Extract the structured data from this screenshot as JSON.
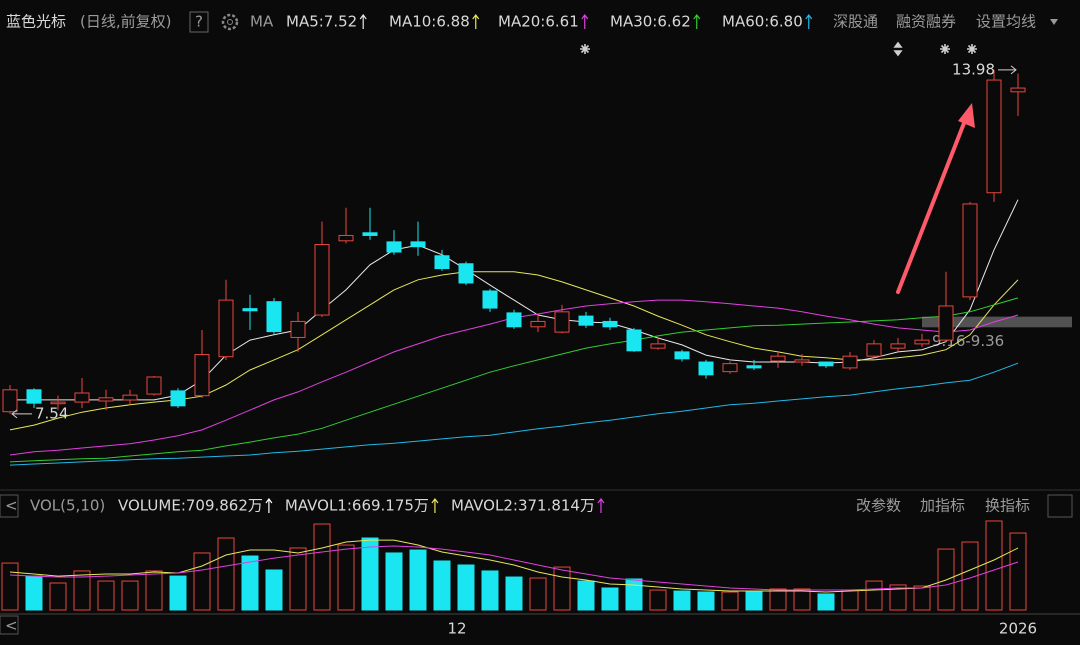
{
  "header": {
    "title": "蓝色光标",
    "subtitle": "(日线,前复权)",
    "indicator": "MA",
    "tools": [
      "深股通",
      "融资融券",
      "设置均线"
    ]
  },
  "toolbar": [
    "改参数",
    "加指标",
    "换指标"
  ],
  "chart_data": [
    {
      "type": "candlestick",
      "up_color": "#e8463f",
      "down_color": "#19e6f0",
      "ylim": [
        6.17,
        14.54
      ],
      "open": [
        7.58,
        7.99,
        7.73,
        7.76,
        7.78,
        7.8,
        7.91,
        7.97,
        7.88,
        8.61,
        9.51,
        9.64,
        8.97,
        9.39,
        10.78,
        10.93,
        10.76,
        10.76,
        10.5,
        10.35,
        9.84,
        9.43,
        9.17,
        9.07,
        9.37,
        9.27,
        9.11,
        8.77,
        8.7,
        8.51,
        8.33,
        8.44,
        8.53,
        8.51,
        8.51,
        8.4,
        8.62,
        8.77,
        8.85,
        8.92,
        9.73,
        11.68,
        13.57
      ],
      "high": [
        8.08,
        8.02,
        7.88,
        8.21,
        7.99,
        7.99,
        8.25,
        8.02,
        9.11,
        10.05,
        9.77,
        9.71,
        9.45,
        11.14,
        11.4,
        11.4,
        10.98,
        11.14,
        10.61,
        10.39,
        9.88,
        9.49,
        9.41,
        9.58,
        9.45,
        9.34,
        9.15,
        8.96,
        8.74,
        8.55,
        8.52,
        8.55,
        8.7,
        8.66,
        8.52,
        8.7,
        8.92,
        8.96,
        9.04,
        10.2,
        11.51,
        13.98,
        13.91
      ],
      "low": [
        7.54,
        7.65,
        7.61,
        7.65,
        7.61,
        7.71,
        7.88,
        7.65,
        7.84,
        8.55,
        9.11,
        9.03,
        8.7,
        9.35,
        10.73,
        10.8,
        10.52,
        10.5,
        10.22,
        9.95,
        9.45,
        9.13,
        9.07,
        9.05,
        9.15,
        9.11,
        8.7,
        8.74,
        8.52,
        8.2,
        8.29,
        8.36,
        8.4,
        8.44,
        8.4,
        8.36,
        8.59,
        8.7,
        8.79,
        8.89,
        9.67,
        11.51,
        13.12
      ],
      "close": [
        7.99,
        7.74,
        7.76,
        7.93,
        7.84,
        7.89,
        8.23,
        7.69,
        8.65,
        9.67,
        9.47,
        9.08,
        9.27,
        10.71,
        10.88,
        10.88,
        10.57,
        10.67,
        10.26,
        9.99,
        9.52,
        9.17,
        9.27,
        9.45,
        9.2,
        9.17,
        8.72,
        8.85,
        8.57,
        8.27,
        8.48,
        8.4,
        8.62,
        8.55,
        8.44,
        8.62,
        8.85,
        8.85,
        8.92,
        9.56,
        11.47,
        13.79,
        13.64
      ],
      "series": [
        {
          "name": "MA5:7.52",
          "color": "#e8e8e8",
          "values": [
            7.8,
            7.8,
            7.8,
            7.8,
            7.8,
            7.8,
            7.8,
            7.89,
            8.17,
            8.64,
            8.92,
            9.02,
            9.11,
            9.49,
            9.86,
            10.33,
            10.61,
            10.7,
            10.52,
            10.24,
            9.95,
            9.67,
            9.39,
            9.3,
            9.26,
            9.24,
            9.11,
            8.96,
            8.83,
            8.64,
            8.55,
            8.51,
            8.51,
            8.51,
            8.49,
            8.51,
            8.59,
            8.7,
            8.74,
            8.89,
            9.49,
            10.61,
            11.55
          ]
        },
        {
          "name": "MA10:6.88",
          "color": "#e6e65a",
          "values": [
            7.24,
            7.33,
            7.46,
            7.57,
            7.65,
            7.71,
            7.76,
            7.8,
            7.87,
            8.08,
            8.36,
            8.55,
            8.74,
            9.02,
            9.3,
            9.58,
            9.86,
            10.05,
            10.14,
            10.2,
            10.2,
            10.2,
            10.14,
            10.01,
            9.86,
            9.71,
            9.56,
            9.37,
            9.2,
            9.02,
            8.89,
            8.77,
            8.7,
            8.62,
            8.59,
            8.55,
            8.55,
            8.59,
            8.64,
            8.74,
            9.02,
            9.58,
            10.05
          ]
        },
        {
          "name": "MA20:6.61",
          "color": "#e040e0",
          "values": [
            6.77,
            6.83,
            6.86,
            6.9,
            6.94,
            6.98,
            7.05,
            7.13,
            7.24,
            7.42,
            7.61,
            7.8,
            7.95,
            8.14,
            8.32,
            8.51,
            8.7,
            8.85,
            9.0,
            9.11,
            9.22,
            9.34,
            9.41,
            9.49,
            9.56,
            9.6,
            9.64,
            9.67,
            9.67,
            9.64,
            9.6,
            9.56,
            9.52,
            9.45,
            9.37,
            9.3,
            9.22,
            9.15,
            9.11,
            9.07,
            9.11,
            9.26,
            9.39
          ]
        },
        {
          "name": "MA30:6.62",
          "color": "#33cc33",
          "values": [
            6.64,
            6.66,
            6.68,
            6.7,
            6.71,
            6.75,
            6.79,
            6.83,
            6.86,
            6.94,
            7.01,
            7.09,
            7.16,
            7.27,
            7.42,
            7.57,
            7.72,
            7.87,
            8.02,
            8.17,
            8.32,
            8.44,
            8.55,
            8.66,
            8.77,
            8.85,
            8.92,
            9.0,
            9.07,
            9.11,
            9.15,
            9.19,
            9.2,
            9.22,
            9.24,
            9.26,
            9.28,
            9.3,
            9.34,
            9.37,
            9.45,
            9.58,
            9.71
          ]
        },
        {
          "name": "MA60:6.80",
          "color": "#22b8e6",
          "values": [
            6.58,
            6.6,
            6.62,
            6.64,
            6.66,
            6.68,
            6.7,
            6.71,
            6.73,
            6.75,
            6.77,
            6.81,
            6.84,
            6.88,
            6.92,
            6.96,
            6.99,
            7.03,
            7.07,
            7.11,
            7.14,
            7.2,
            7.26,
            7.31,
            7.37,
            7.42,
            7.48,
            7.54,
            7.59,
            7.65,
            7.71,
            7.74,
            7.78,
            7.82,
            7.86,
            7.89,
            7.95,
            8.01,
            8.06,
            8.12,
            8.17,
            8.32,
            8.49
          ]
        }
      ],
      "high_marker": 13.98,
      "low_marker": 7.54,
      "band": {
        "from": 9.16,
        "to": 9.36,
        "label": "9.16-9.36"
      }
    },
    {
      "type": "bar",
      "title": "VOL(5,10)",
      "volume_label": "VOLUME:709.862万",
      "ylim": [
        0,
        830
      ],
      "categories": [
        null,
        null,
        null,
        null,
        null,
        null,
        null,
        null,
        null,
        null,
        null,
        null,
        null,
        null,
        null,
        null,
        null,
        null,
        null,
        "12",
        null,
        null,
        null,
        null,
        null,
        null,
        null,
        null,
        null,
        null,
        null,
        null,
        null,
        null,
        null,
        null,
        null,
        null,
        null,
        null,
        null,
        null,
        "2026"
      ],
      "values": [
        433,
        313,
        249,
        360,
        267,
        267,
        360,
        313,
        526,
        664,
        498,
        369,
        572,
        793,
        599,
        664,
        526,
        553,
        452,
        415,
        360,
        304,
        295,
        396,
        267,
        203,
        286,
        184,
        175,
        166,
        166,
        175,
        194,
        194,
        148,
        184,
        267,
        231,
        221,
        562,
        627,
        821,
        709.862
      ],
      "series": [
        {
          "name": "MAVOL1:669.175万",
          "color": "#e6e65a",
          "values": [
            350,
            332,
            313,
            323,
            332,
            332,
            350,
            341,
            406,
            507,
            553,
            553,
            526,
            572,
            627,
            645,
            645,
            599,
            535,
            498,
            461,
            415,
            350,
            304,
            277,
            240,
            231,
            212,
            194,
            184,
            175,
            175,
            175,
            175,
            166,
            175,
            184,
            194,
            203,
            277,
            369,
            461,
            572
          ]
        },
        {
          "name": "MAVOL2:371.814万",
          "color": "#e040e0",
          "values": [
            323,
            313,
            304,
            304,
            313,
            323,
            332,
            341,
            369,
            406,
            443,
            479,
            507,
            535,
            562,
            581,
            590,
            581,
            562,
            535,
            507,
            461,
            415,
            369,
            332,
            295,
            277,
            258,
            240,
            221,
            203,
            194,
            184,
            184,
            184,
            184,
            194,
            203,
            203,
            231,
            295,
            369,
            443
          ]
        }
      ]
    }
  ]
}
